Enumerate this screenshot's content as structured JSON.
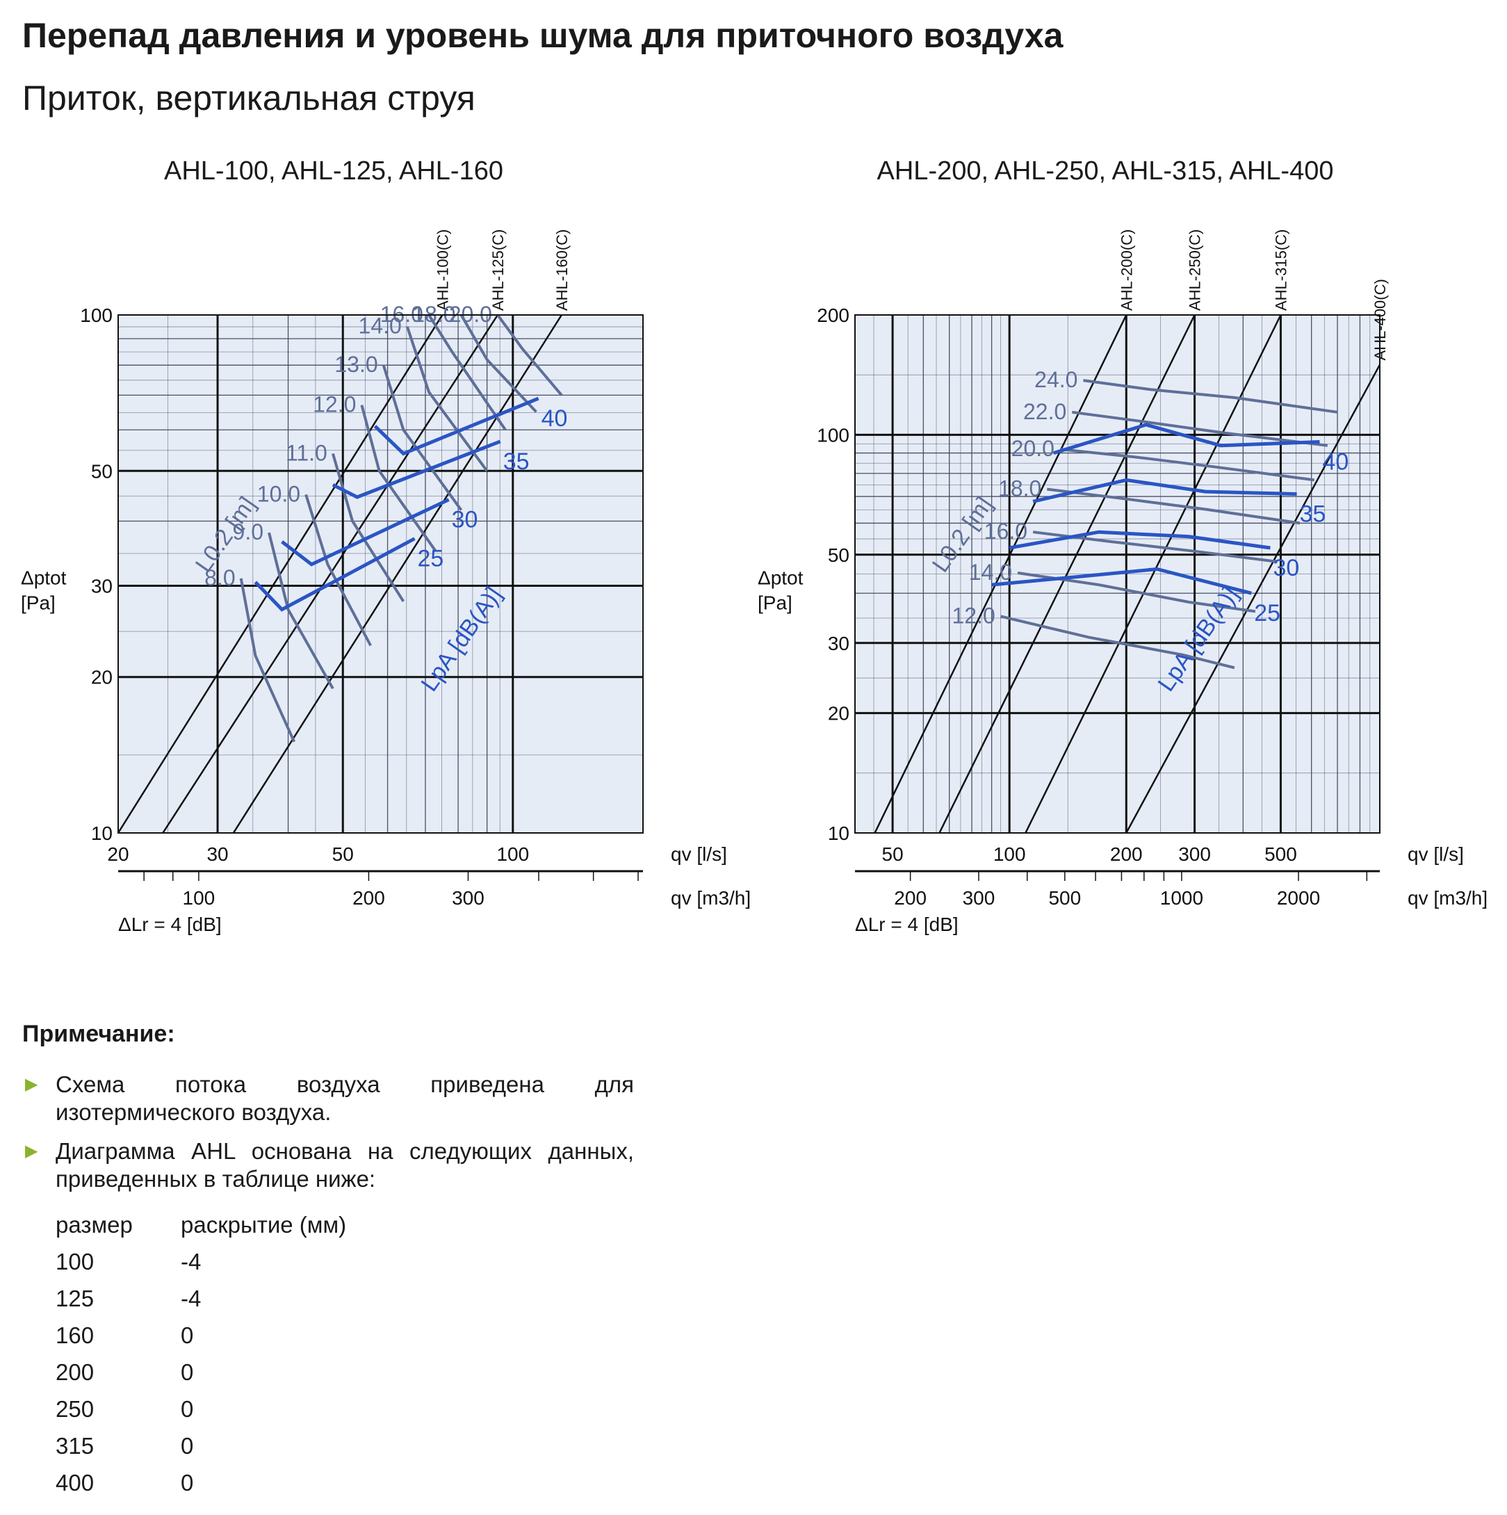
{
  "title": "Перепад давления и уровень шума для приточного воздуха",
  "subtitle": "Приток, вертикальная струя",
  "note": {
    "heading": "Примечание:",
    "bullets": [
      "Схема потока воздуха приведена для изотермического воздуха.",
      "Диаграмма AHL основана на следующих данных, приведенных в таблице ниже:"
    ],
    "table": {
      "headers": [
        "размер",
        "раскрытие (мм)"
      ],
      "rows": [
        [
          "100",
          "-4"
        ],
        [
          "125",
          "-4"
        ],
        [
          "160",
          "0"
        ],
        [
          "200",
          "0"
        ],
        [
          "250",
          "0"
        ],
        [
          "315",
          "0"
        ],
        [
          "400",
          "0"
        ]
      ]
    }
  },
  "colors": {
    "plot_bg": "#e6ecf6",
    "grid_minor": "#4a4f66",
    "grid_major": "#111111",
    "throw_lines": "#5e6f98",
    "noise_lines": "#2a55c4"
  },
  "chart_data": [
    {
      "type": "line",
      "title": "AHL-100, AHL-125, AHL-160",
      "xlabel": "qv [l/s]",
      "x2label": "qv [m3/h]",
      "ylabel": [
        "Δptot",
        "[Pa]"
      ],
      "xscale": "log",
      "yscale": "log",
      "xlim": [
        20,
        170
      ],
      "ylim": [
        10,
        100
      ],
      "x_ticks": [
        "20",
        "30",
        "50",
        "100"
      ],
      "x2_ticks": [
        "100",
        "200",
        "300"
      ],
      "y_ticks": [
        "10",
        "20",
        "30",
        "50",
        "100"
      ],
      "footnote": "ΔLr = 4 [dB]",
      "throw_label": "L0.2 [m]",
      "noise_label": "LpA [dB(A)]",
      "size_lines": [
        {
          "name": "AHL-100(C)",
          "points": [
            [
              20,
              10
            ],
            [
              75,
              100
            ]
          ]
        },
        {
          "name": "AHL-125(C)",
          "points": [
            [
              24,
              10
            ],
            [
              94,
              100
            ]
          ]
        },
        {
          "name": "AHL-160(C)",
          "points": [
            [
              32,
              10
            ],
            [
              122,
              100
            ]
          ]
        }
      ],
      "throw_lines": [
        {
          "name": "8.0",
          "points": [
            [
              33,
              31
            ],
            [
              35,
              22
            ],
            [
              41,
              15
            ]
          ]
        },
        {
          "name": "9.0",
          "points": [
            [
              37,
              38
            ],
            [
              40,
              27
            ],
            [
              48,
              19
            ]
          ]
        },
        {
          "name": "10.0",
          "points": [
            [
              43,
              45
            ],
            [
              47,
              33
            ],
            [
              56,
              23
            ]
          ]
        },
        {
          "name": "11.0",
          "points": [
            [
              48,
              54
            ],
            [
              52,
              40
            ],
            [
              64,
              28
            ]
          ]
        },
        {
          "name": "12.0",
          "points": [
            [
              54,
              67
            ],
            [
              58,
              50
            ],
            [
              73,
              35
            ]
          ]
        },
        {
          "name": "13.0",
          "points": [
            [
              59,
              80
            ],
            [
              64,
              60
            ],
            [
              81,
              42
            ]
          ]
        },
        {
          "name": "14.0",
          "points": [
            [
              65,
              95
            ],
            [
              71,
              71
            ],
            [
              90,
              50
            ]
          ]
        },
        {
          "name": "16.0",
          "points": [
            [
              71,
              100
            ],
            [
              78,
              85
            ],
            [
              97,
              60
            ]
          ]
        },
        {
          "name": "18.0",
          "points": [
            [
              81,
              100
            ],
            [
              90,
              82
            ],
            [
              110,
              65
            ]
          ]
        },
        {
          "name": "20.0",
          "points": [
            [
              94,
              100
            ],
            [
              104,
              86
            ],
            [
              122,
              70
            ]
          ]
        }
      ],
      "noise_lines": [
        {
          "name": "25",
          "points": [
            [
              35,
              30.5
            ],
            [
              39,
              27
            ],
            [
              67,
              37
            ]
          ]
        },
        {
          "name": "30",
          "points": [
            [
              39,
              36.5
            ],
            [
              44,
              33
            ],
            [
              77,
              44
            ]
          ]
        },
        {
          "name": "35",
          "points": [
            [
              48,
              47
            ],
            [
              53,
              44.5
            ],
            [
              95,
              57
            ]
          ]
        },
        {
          "name": "40",
          "points": [
            [
              57,
              61
            ],
            [
              64,
              54
            ],
            [
              111,
              69
            ]
          ]
        }
      ]
    },
    {
      "type": "line",
      "title": "AHL-200, AHL-250, AHL-315, AHL-400",
      "xlabel": "qv [l/s]",
      "x2label": "qv [m3/h]",
      "ylabel": [
        "Δptot",
        "[Pa]"
      ],
      "xscale": "log",
      "yscale": "log",
      "xlim": [
        40,
        900
      ],
      "ylim": [
        10,
        200
      ],
      "x_ticks": [
        "50",
        "100",
        "200",
        "300",
        "500"
      ],
      "x2_ticks": [
        "200",
        "300",
        "500",
        "1000",
        "2000"
      ],
      "y_ticks": [
        "10",
        "20",
        "30",
        "50",
        "100",
        "200"
      ],
      "footnote": "ΔLr = 4 [dB]",
      "throw_label": "L0.2 [m]",
      "noise_label": "LpA [dB(A)]",
      "size_lines": [
        {
          "name": "AHL-200(C)",
          "points": [
            [
              45,
              10
            ],
            [
              200,
              200
            ]
          ]
        },
        {
          "name": "AHL-250(C)",
          "points": [
            [
              66,
              10
            ],
            [
              300,
              200
            ]
          ]
        },
        {
          "name": "AHL-315(C)",
          "points": [
            [
              110,
              10
            ],
            [
              500,
              200
            ]
          ]
        },
        {
          "name": "AHL-400(C)",
          "points": [
            [
              200,
              10
            ],
            [
              900,
              150
            ]
          ]
        }
      ],
      "throw_lines": [
        {
          "name": "12.0",
          "points": [
            [
              95,
              35
            ],
            [
              160,
              31
            ],
            [
              280,
              28
            ],
            [
              380,
              26
            ]
          ]
        },
        {
          "name": "14.0",
          "points": [
            [
              105,
              45
            ],
            [
              170,
              42
            ],
            [
              290,
              38
            ],
            [
              430,
              36
            ]
          ]
        },
        {
          "name": "16.0",
          "points": [
            [
              115,
              57
            ],
            [
              180,
              54
            ],
            [
              300,
              51
            ],
            [
              490,
              48
            ]
          ]
        },
        {
          "name": "18.0",
          "points": [
            [
              125,
              73
            ],
            [
              200,
              69
            ],
            [
              320,
              65
            ],
            [
              560,
              60
            ]
          ]
        },
        {
          "name": "20.0",
          "points": [
            [
              135,
              92
            ],
            [
              210,
              88
            ],
            [
              340,
              83
            ],
            [
              610,
              77
            ]
          ]
        },
        {
          "name": "22.0",
          "points": [
            [
              145,
              114
            ],
            [
              220,
              108
            ],
            [
              360,
              101
            ],
            [
              660,
              94
            ]
          ]
        },
        {
          "name": "24.0",
          "points": [
            [
              155,
              137
            ],
            [
              230,
              130
            ],
            [
              380,
              124
            ],
            [
              700,
              114
            ]
          ]
        }
      ],
      "noise_lines": [
        {
          "name": "25",
          "points": [
            [
              90,
              42
            ],
            [
              150,
              44
            ],
            [
              240,
              46
            ],
            [
              420,
              40
            ]
          ]
        },
        {
          "name": "30",
          "points": [
            [
              100,
              52
            ],
            [
              170,
              57
            ],
            [
              290,
              55.5
            ],
            [
              470,
              52
            ]
          ]
        },
        {
          "name": "35",
          "points": [
            [
              115,
              68
            ],
            [
              200,
              77
            ],
            [
              320,
              72
            ],
            [
              550,
              71
            ]
          ]
        },
        {
          "name": "40",
          "points": [
            [
              130,
              90
            ],
            [
              225,
              106
            ],
            [
              350,
              94
            ],
            [
              630,
              96
            ]
          ]
        }
      ]
    }
  ]
}
